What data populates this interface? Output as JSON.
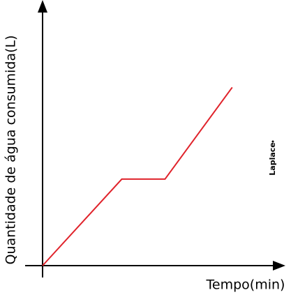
{
  "chart_data": {
    "type": "line",
    "x_label": "Tempo(min)",
    "y_label": "Quantidade de água consumida(L)",
    "annotation": "Laplace",
    "x": [
      0,
      3.3,
      5.1,
      7.9
    ],
    "series": [
      {
        "color": "#e0232b",
        "values": [
          0,
          3.3,
          3.3,
          6.8
        ]
      }
    ],
    "xlim": [
      0,
      10
    ],
    "ylim": [
      0,
      10
    ]
  }
}
